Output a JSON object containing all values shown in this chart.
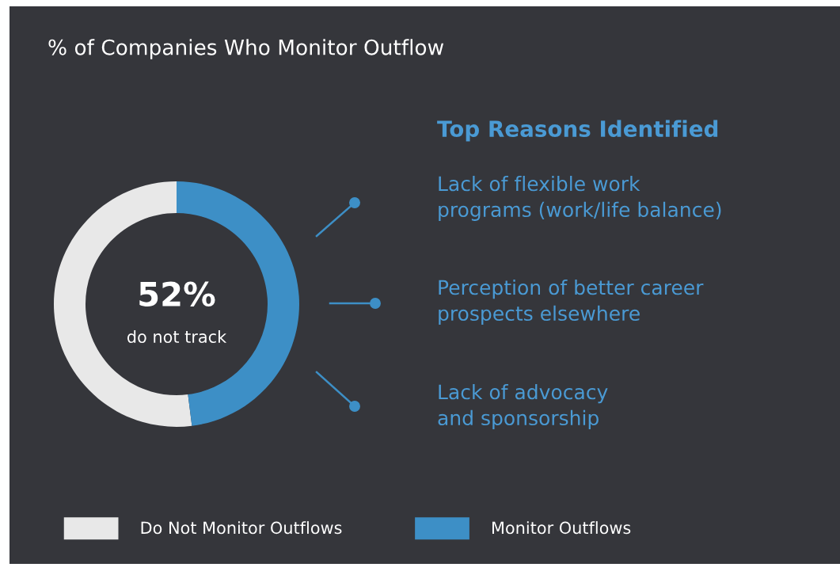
{
  "chart_data": {
    "type": "donut",
    "title": "% of Companies Who Monitor Outflow",
    "categories": [
      "Do Not Monitor Outflows",
      "Monitor Outflows"
    ],
    "values": [
      52,
      48
    ],
    "colors": [
      "#e8e8e8",
      "#3d8fc6"
    ],
    "legend": "bottom",
    "annotations": [
      "52%",
      "do not track",
      "Top Reasons Identified",
      "Lack of flexible work\nprograms (work/life balance)",
      "Perception of better career\nprospects elsewhere",
      "Lack of advocacy\nand sponsorship"
    ]
  }
}
